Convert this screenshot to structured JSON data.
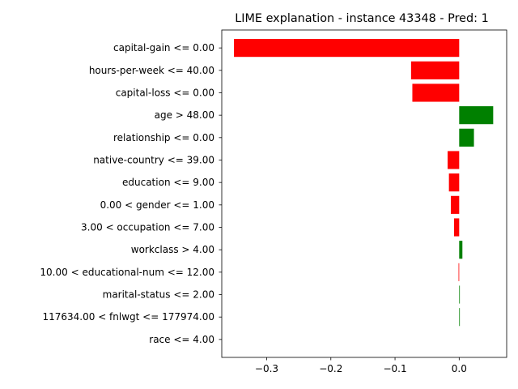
{
  "chart_data": {
    "type": "bar",
    "orientation": "horizontal",
    "title": "LIME explanation - instance 43348 - Pred: 1",
    "xlabel": "",
    "ylabel": "",
    "xlim": [
      -0.37,
      0.074
    ],
    "xticks": [
      -0.3,
      -0.2,
      -0.1,
      0.0
    ],
    "xtick_labels": [
      "−0.3",
      "−0.2",
      "−0.1",
      "0.0"
    ],
    "grid": false,
    "legend": "none",
    "colors": {
      "positive": "#008000",
      "negative": "#ff0000"
    },
    "categories": [
      "capital-gain <= 0.00",
      "hours-per-week <= 40.00",
      "capital-loss <= 0.00",
      "age > 48.00",
      "relationship <= 0.00",
      "native-country <= 39.00",
      "education <= 9.00",
      "0.00 < gender <= 1.00",
      "3.00 < occupation <= 7.00",
      "workclass > 4.00",
      "10.00 < educational-num <= 12.00",
      "marital-status <= 2.00",
      "117634.00 < fnlwgt <= 177974.00",
      "race <= 4.00"
    ],
    "values": [
      -0.351,
      -0.075,
      -0.073,
      0.053,
      0.023,
      -0.018,
      -0.016,
      -0.013,
      -0.008,
      0.005,
      -0.001,
      0.001,
      0.001,
      0.0
    ]
  }
}
